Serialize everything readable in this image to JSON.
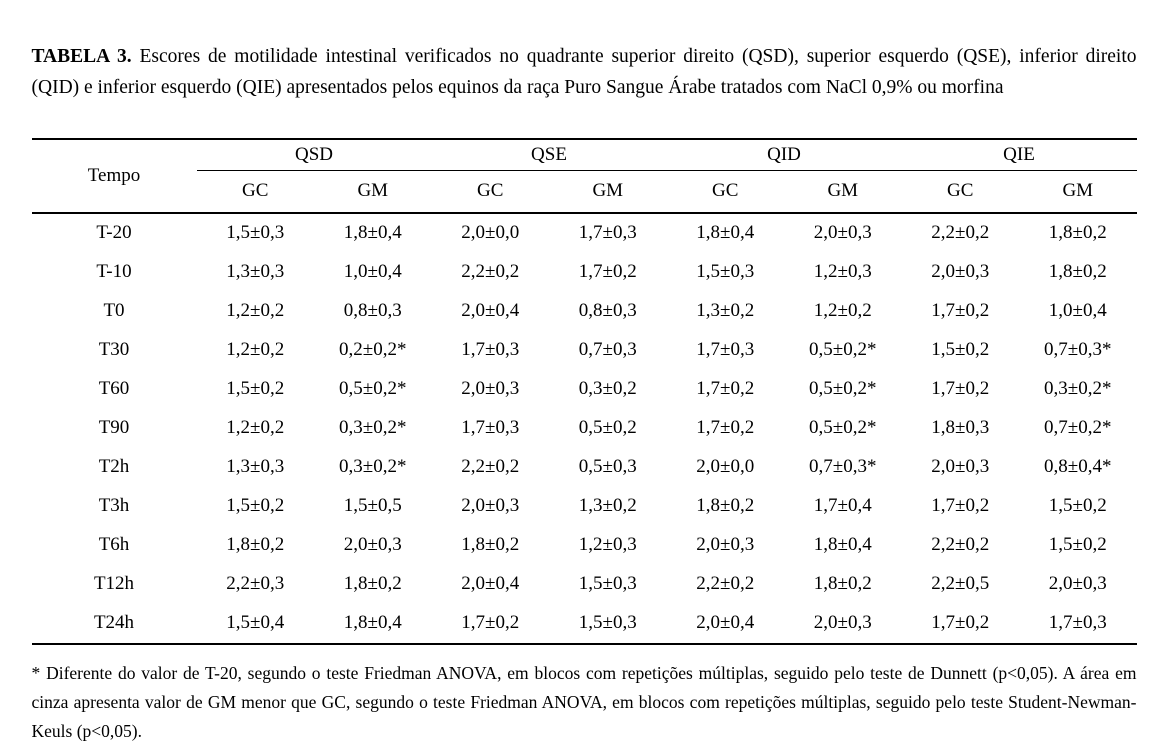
{
  "title": {
    "label": "TABELA 3.",
    "text": "Escores de motilidade intestinal verificados no quadrante superior direito (QSD), superior esquerdo (QSE), inferior direito (QID) e inferior esquerdo (QIE) apresentados pelos equinos da raça Puro Sangue Árabe tratados com NaCl 0,9% ou morfina"
  },
  "table": {
    "time_header": "Tempo",
    "quadrants": [
      {
        "label": "QSD"
      },
      {
        "label": "QSE"
      },
      {
        "label": "QID"
      },
      {
        "label": "QIE"
      }
    ],
    "group_headers": [
      "GC",
      "GM"
    ],
    "rows": [
      {
        "time": "T-20",
        "values": [
          "1,5±0,3",
          "1,8±0,4",
          "2,0±0,0",
          "1,7±0,3",
          "1,8±0,4",
          "2,0±0,3",
          "2,2±0,2",
          "1,8±0,2"
        ]
      },
      {
        "time": "T-10",
        "values": [
          "1,3±0,3",
          "1,0±0,4",
          "2,2±0,2",
          "1,7±0,2",
          "1,5±0,3",
          "1,2±0,3",
          "2,0±0,3",
          "1,8±0,2"
        ]
      },
      {
        "time": "T0",
        "values": [
          "1,2±0,2",
          "0,8±0,3",
          "2,0±0,4",
          "0,8±0,3",
          "1,3±0,2",
          "1,2±0,2",
          "1,7±0,2",
          "1,0±0,4"
        ]
      },
      {
        "time": "T30",
        "values": [
          "1,2±0,2",
          "0,2±0,2*",
          "1,7±0,3",
          "0,7±0,3",
          "1,7±0,3",
          "0,5±0,2*",
          "1,5±0,2",
          "0,7±0,3*"
        ]
      },
      {
        "time": "T60",
        "values": [
          "1,5±0,2",
          "0,5±0,2*",
          "2,0±0,3",
          "0,3±0,2",
          "1,7±0,2",
          "0,5±0,2*",
          "1,7±0,2",
          "0,3±0,2*"
        ]
      },
      {
        "time": "T90",
        "values": [
          "1,2±0,2",
          "0,3±0,2*",
          "1,7±0,3",
          "0,5±0,2",
          "1,7±0,2",
          "0,5±0,2*",
          "1,8±0,3",
          "0,7±0,2*"
        ]
      },
      {
        "time": "T2h",
        "values": [
          "1,3±0,3",
          "0,3±0,2*",
          "2,2±0,2",
          "0,5±0,3",
          "2,0±0,0",
          "0,7±0,3*",
          "2,0±0,3",
          "0,8±0,4*"
        ]
      },
      {
        "time": "T3h",
        "values": [
          "1,5±0,2",
          "1,5±0,5",
          "2,0±0,3",
          "1,3±0,2",
          "1,8±0,2",
          "1,7±0,4",
          "1,7±0,2",
          "1,5±0,2"
        ]
      },
      {
        "time": "T6h",
        "values": [
          "1,8±0,2",
          "2,0±0,3",
          "1,8±0,2",
          "1,2±0,3",
          "2,0±0,3",
          "1,8±0,4",
          "2,2±0,2",
          "1,5±0,2"
        ]
      },
      {
        "time": "T12h",
        "values": [
          "2,2±0,3",
          "1,8±0,2",
          "2,0±0,4",
          "1,5±0,3",
          "2,2±0,2",
          "1,8±0,2",
          "2,2±0,5",
          "2,0±0,3"
        ]
      },
      {
        "time": "T24h",
        "values": [
          "1,5±0,4",
          "1,8±0,4",
          "1,7±0,2",
          "1,5±0,3",
          "2,0±0,4",
          "2,0±0,3",
          "1,7±0,2",
          "1,7±0,3"
        ]
      }
    ]
  },
  "footnote": {
    "text": "* Diferente do valor de T-20, segundo o teste Friedman ANOVA, em blocos com repetições múltiplas, seguido pelo teste de Dunnett (p<0,05). A área em cinza apresenta valor de GM menor que GC, segundo o teste Friedman ANOVA, em blocos com repetições múltiplas, seguido pelo teste Student-Newman-Keuls (p<0,05)."
  },
  "colors": {
    "text": "#000000",
    "background": "#ffffff",
    "rule": "#000000"
  }
}
